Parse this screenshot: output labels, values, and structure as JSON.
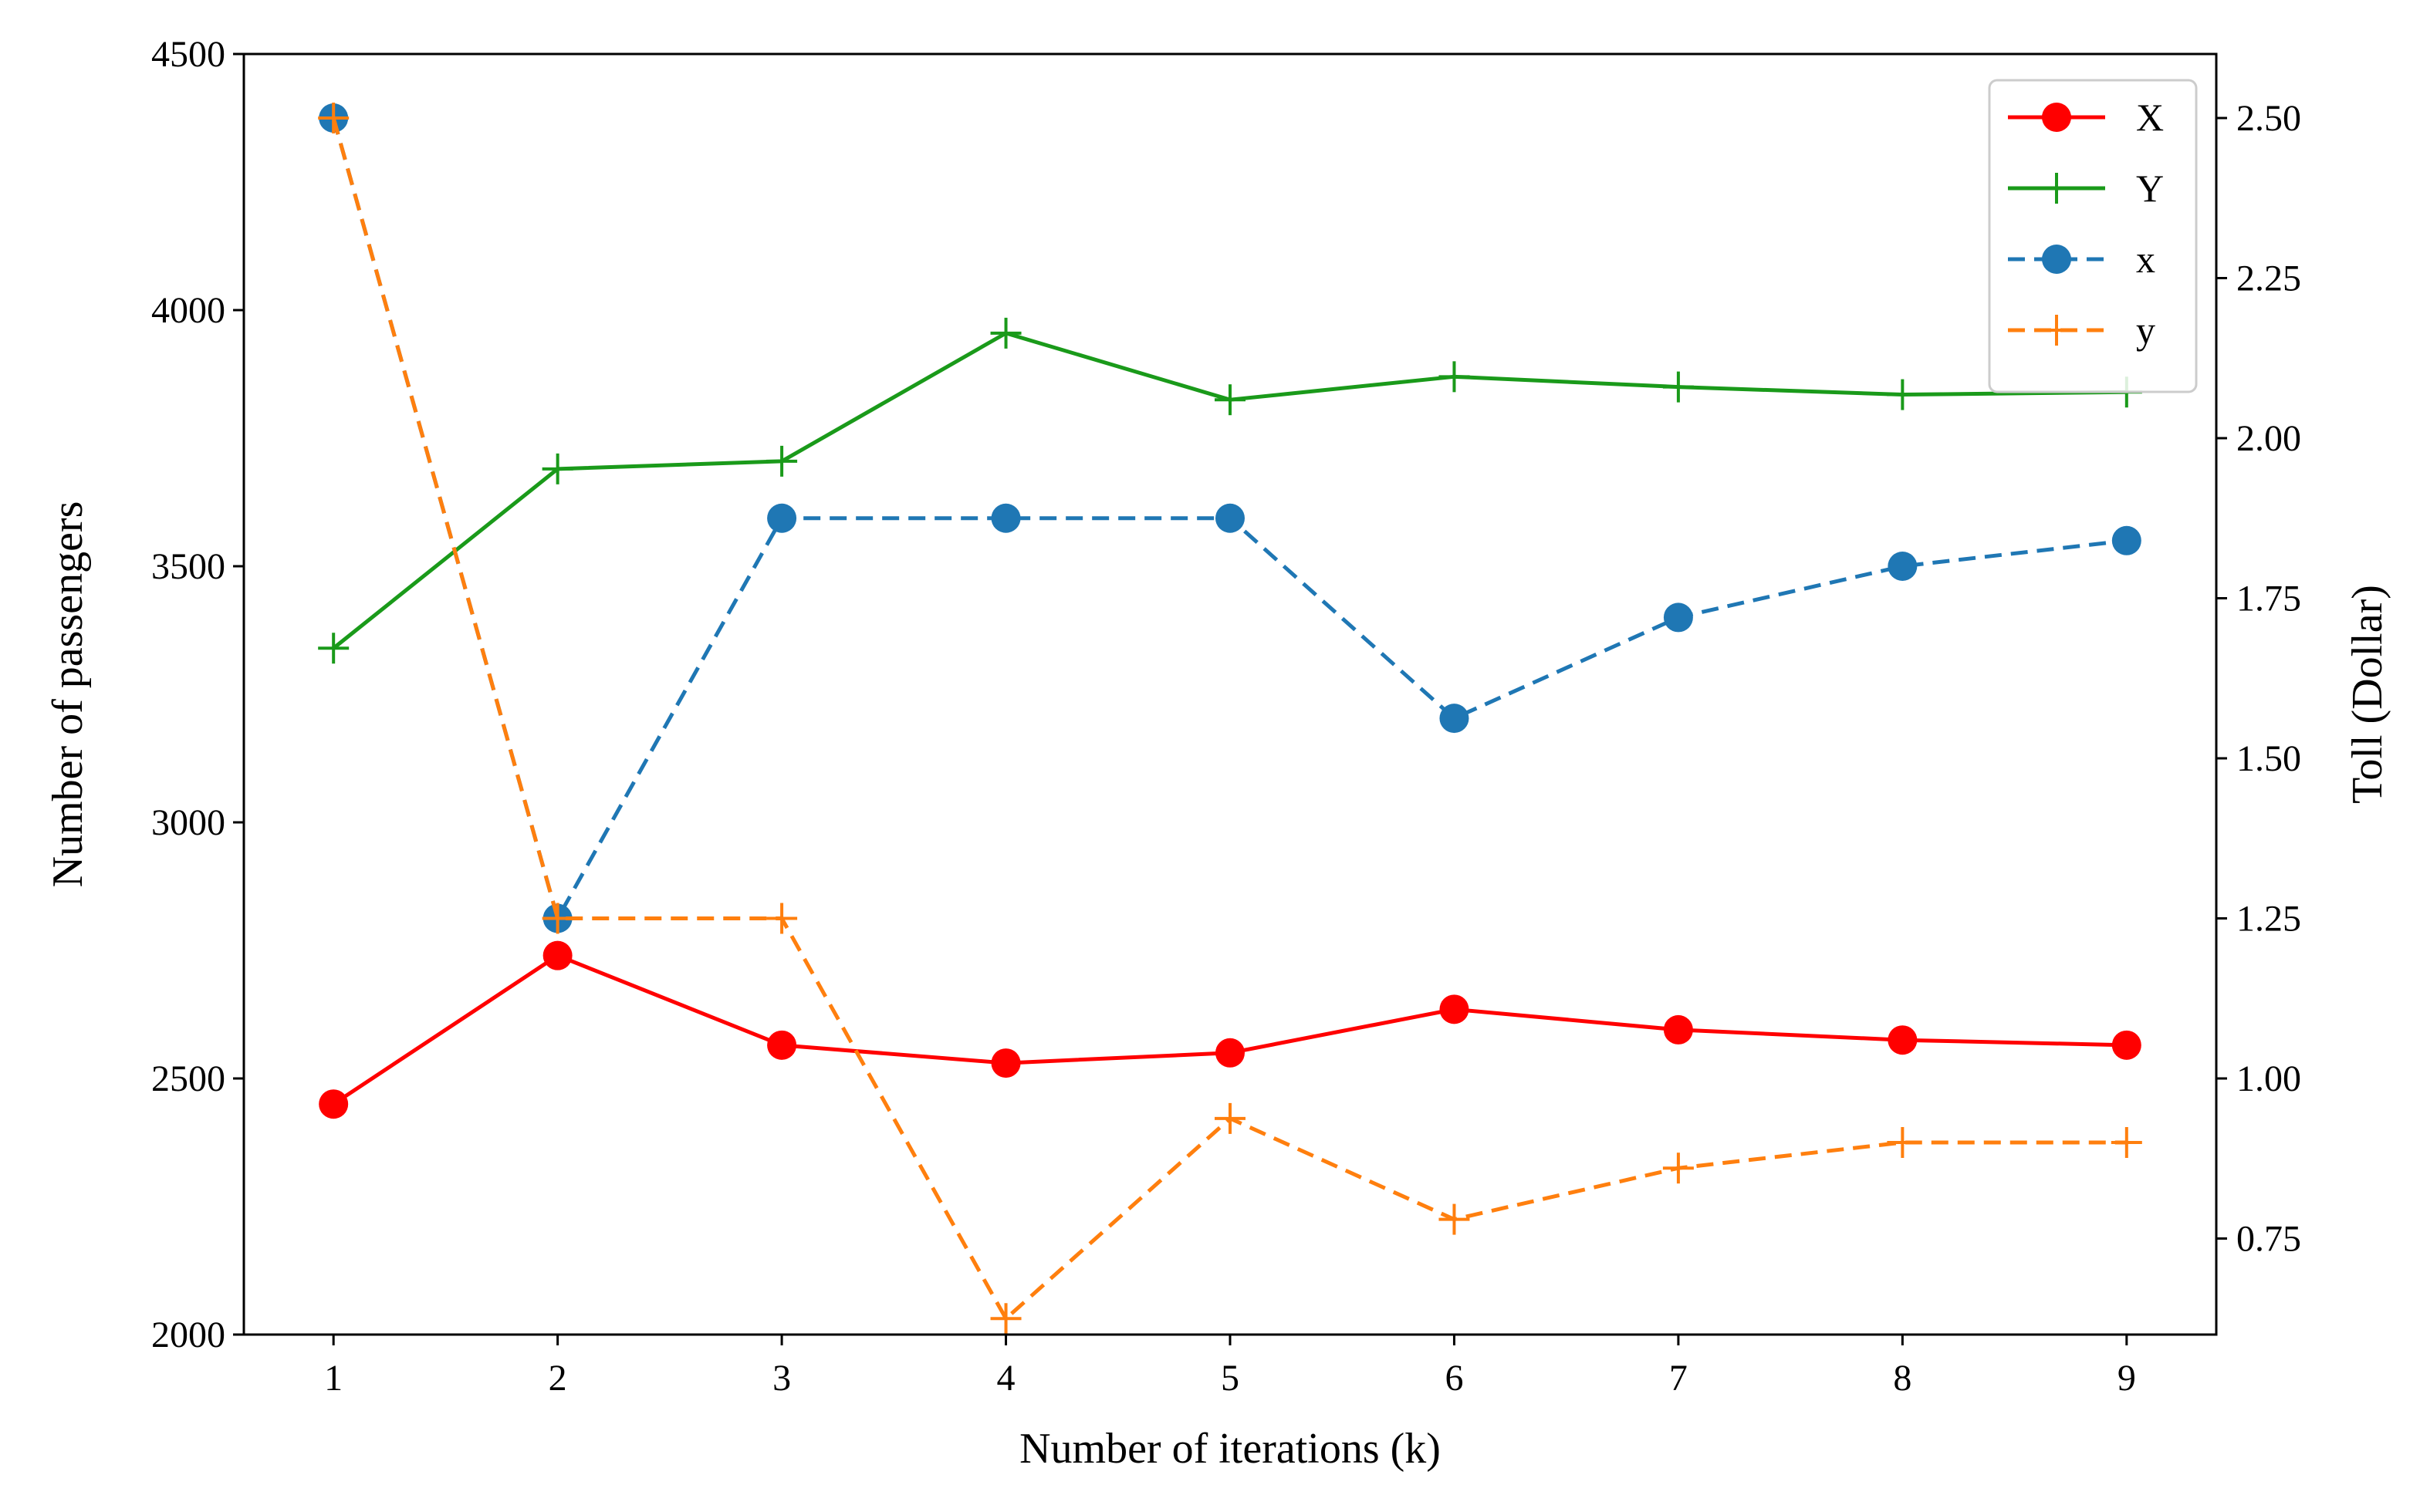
{
  "chart_data": {
    "type": "line",
    "title": "",
    "xlabel": "Number of iterations (k)",
    "ylabel": "Number of passengers",
    "y2label": "Toll (Dollar)",
    "x": [
      1,
      2,
      3,
      4,
      5,
      6,
      7,
      8,
      9
    ],
    "xticks": [
      "1",
      "2",
      "3",
      "4",
      "5",
      "6",
      "7",
      "8",
      "9"
    ],
    "xlim": [
      0.6,
      9.4
    ],
    "ylim": [
      2000,
      4500
    ],
    "y2lim": [
      0.6,
      2.6
    ],
    "yticks": [
      "2000",
      "2500",
      "3000",
      "3500",
      "4000",
      "4500"
    ],
    "y2ticks": [
      "0.75",
      "1.00",
      "1.25",
      "1.50",
      "1.75",
      "2.00",
      "2.25",
      "2.50"
    ],
    "legend_position": "top-right",
    "series": [
      {
        "name": "X",
        "axis": "left",
        "color": "#ff0000",
        "style": "solid",
        "marker": "circle",
        "values": [
          2450,
          2740,
          2565,
          2530,
          2550,
          2635,
          2595,
          2575,
          2565
        ]
      },
      {
        "name": "Y",
        "axis": "left",
        "color": "#1a9a1a",
        "style": "solid",
        "marker": "plus",
        "values": [
          3340,
          3690,
          3705,
          3955,
          3825,
          3870,
          3850,
          3835,
          3840
        ]
      },
      {
        "name": "x",
        "axis": "right",
        "color": "#1f77b4",
        "style": "dashed",
        "marker": "circle",
        "values": [
          2.5,
          1.25,
          1.875,
          1.875,
          1.875,
          1.5625,
          1.72,
          1.8,
          1.84
        ]
      },
      {
        "name": "y",
        "axis": "right",
        "color": "#ff7f0e",
        "style": "dashed",
        "marker": "plus",
        "values": [
          2.5,
          1.25,
          1.25,
          0.625,
          0.9375,
          0.78,
          0.86,
          0.9,
          0.9
        ]
      }
    ]
  }
}
